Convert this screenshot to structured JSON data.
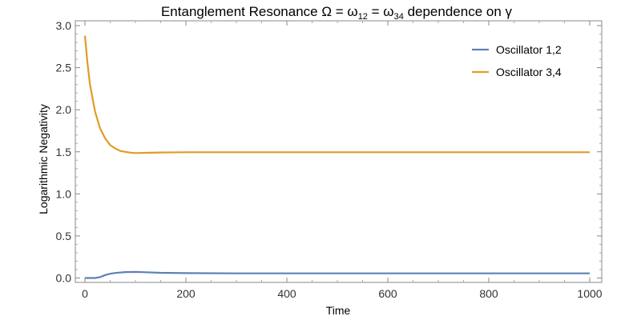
{
  "chart_data": {
    "type": "line",
    "title_parts": {
      "prefix": "Entanglement Resonance Ω = ω",
      "sub1": "12",
      "mid": " = ω",
      "sub2": "34",
      "suffix": " dependence on γ"
    },
    "xlabel": "Time",
    "ylabel": "Logarithmic Negativity",
    "xlim": [
      0,
      1000
    ],
    "ylim": [
      0,
      3.0
    ],
    "xticks": [
      0,
      200,
      400,
      600,
      800,
      1000
    ],
    "yticks": [
      "0.0",
      "0.5",
      "1.0",
      "1.5",
      "2.0",
      "2.5",
      "3.0"
    ],
    "legend_position": "top-right",
    "series": [
      {
        "name": "Oscillator 1,2",
        "color": "#5e81b5",
        "x": [
          0,
          20,
          30,
          40,
          50,
          60,
          80,
          100,
          120,
          150,
          200,
          300,
          400,
          500,
          600,
          700,
          800,
          900,
          1000
        ],
        "y": [
          0.0,
          0.0,
          0.01,
          0.035,
          0.05,
          0.06,
          0.07,
          0.072,
          0.068,
          0.062,
          0.058,
          0.055,
          0.055,
          0.055,
          0.055,
          0.055,
          0.055,
          0.055,
          0.055
        ]
      },
      {
        "name": "Oscillator 3,4",
        "color": "#e19c24",
        "x": [
          0,
          5,
          10,
          20,
          30,
          40,
          50,
          60,
          70,
          80,
          90,
          100,
          120,
          150,
          200,
          300,
          400,
          500,
          600,
          700,
          800,
          900,
          1000
        ],
        "y": [
          2.88,
          2.55,
          2.3,
          1.98,
          1.78,
          1.66,
          1.58,
          1.54,
          1.51,
          1.5,
          1.49,
          1.485,
          1.488,
          1.492,
          1.495,
          1.495,
          1.495,
          1.495,
          1.495,
          1.495,
          1.495,
          1.495,
          1.495
        ]
      }
    ]
  }
}
